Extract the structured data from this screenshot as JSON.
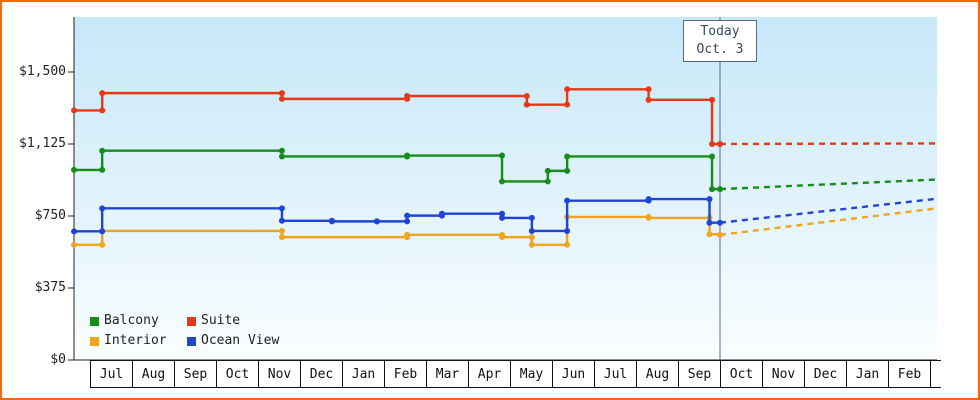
{
  "window": {
    "border_color": "#ff6600",
    "background": "#ffffff"
  },
  "chart_data": {
    "type": "line",
    "subtype": "step-price-history",
    "title": "",
    "ylim": [
      0,
      1500
    ],
    "yticks": [
      {
        "value": 0,
        "label": "$0"
      },
      {
        "value": 375,
        "label": "$375"
      },
      {
        "value": 750,
        "label": "$750"
      },
      {
        "value": 1125,
        "label": "$1,125"
      },
      {
        "value": 1500,
        "label": "$1,500"
      }
    ],
    "months": [
      "Jul",
      "Aug",
      "Sep",
      "Oct",
      "Nov",
      "Dec",
      "Jan",
      "Feb",
      "Mar",
      "Apr",
      "May",
      "Jun",
      "Jul",
      "Aug",
      "Sep",
      "Oct",
      "Nov",
      "Dec",
      "Jan",
      "Feb"
    ],
    "today": {
      "t": 15.0,
      "label": [
        "Today",
        "Oct. 3"
      ]
    },
    "axis_color": "#222222",
    "today_line_color": "#5b6b7b",
    "series": [
      {
        "name": "Interior",
        "color": "#f0a41f",
        "steps": [
          [
            -0.38,
            600
          ],
          [
            0.29,
            672
          ],
          [
            4.57,
            640
          ],
          [
            7.55,
            652
          ],
          [
            9.81,
            640
          ],
          [
            10.52,
            600
          ],
          [
            11.36,
            745
          ],
          [
            13.3,
            740
          ],
          [
            14.75,
            655
          ]
        ],
        "forecast": [
          [
            15.0,
            652
          ],
          [
            20.17,
            790
          ]
        ]
      },
      {
        "name": "Ocean View",
        "color": "#2045d5",
        "steps": [
          [
            -0.38,
            670
          ],
          [
            0.29,
            790
          ],
          [
            4.57,
            725
          ],
          [
            5.76,
            722
          ],
          [
            6.83,
            722
          ],
          [
            7.55,
            752
          ],
          [
            8.38,
            762
          ],
          [
            9.81,
            740
          ],
          [
            10.52,
            672
          ],
          [
            11.36,
            830
          ],
          [
            13.3,
            838
          ],
          [
            14.75,
            715
          ]
        ],
        "forecast": [
          [
            15.0,
            715
          ],
          [
            20.17,
            840
          ]
        ]
      },
      {
        "name": "Balcony",
        "color": "#188c18",
        "steps": [
          [
            -0.38,
            990
          ],
          [
            0.29,
            1090
          ],
          [
            4.57,
            1060
          ],
          [
            7.55,
            1065
          ],
          [
            9.81,
            930
          ],
          [
            10.9,
            985
          ],
          [
            11.36,
            1060
          ],
          [
            14.81,
            890
          ]
        ],
        "forecast": [
          [
            15.0,
            890
          ],
          [
            20.17,
            940
          ]
        ]
      },
      {
        "name": "Suite",
        "color": "#e73817",
        "steps": [
          [
            -0.38,
            1300
          ],
          [
            0.29,
            1390
          ],
          [
            4.57,
            1360
          ],
          [
            7.55,
            1375
          ],
          [
            10.4,
            1330
          ],
          [
            11.36,
            1410
          ],
          [
            13.3,
            1355
          ],
          [
            14.81,
            1125
          ]
        ],
        "forecast": [
          [
            15.0,
            1125
          ],
          [
            20.17,
            1128
          ]
        ]
      }
    ],
    "legend": [
      {
        "label": "Balcony",
        "color": "#188c18"
      },
      {
        "label": "Suite",
        "color": "#e73817"
      },
      {
        "label": "Interior",
        "color": "#f0a41f"
      },
      {
        "label": "Ocean View",
        "color": "#2045d5"
      }
    ]
  }
}
